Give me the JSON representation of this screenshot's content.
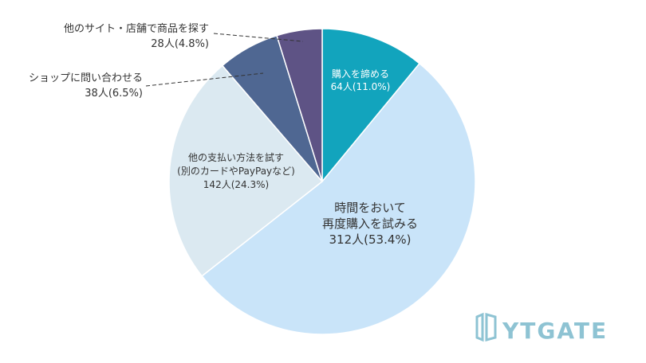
{
  "chart_data": {
    "type": "pie",
    "start_angle_deg": 0,
    "direction": "clockwise",
    "slices": [
      {
        "label_lines": [
          "購入を諦める",
          "64人(11.0%)"
        ],
        "count": 64,
        "percent": 11.0,
        "color": "#12a4bd"
      },
      {
        "label_lines": [
          "時間をおいて",
          "再度購入を試みる",
          "312人(53.4%)"
        ],
        "count": 312,
        "percent": 53.4,
        "color": "#c9e4f9"
      },
      {
        "label_lines": [
          "他の支払い方法を試す",
          "(別のカードやPayPayなど)",
          "142人(24.3%)"
        ],
        "count": 142,
        "percent": 24.3,
        "color": "#dbe9f1"
      },
      {
        "label_lines": [
          "ショップに問い合わせる",
          "38人(6.5%)"
        ],
        "count": 38,
        "percent": 6.5,
        "color": "#4f6792"
      },
      {
        "label_lines": [
          "他のサイト・店舗で商品を探す",
          "28人(4.8%)"
        ],
        "count": 28,
        "percent": 4.8,
        "color": "#5e5385"
      }
    ],
    "legend": "none"
  },
  "watermark": {
    "text": "YTGATE",
    "color": "#8ec3d3"
  }
}
